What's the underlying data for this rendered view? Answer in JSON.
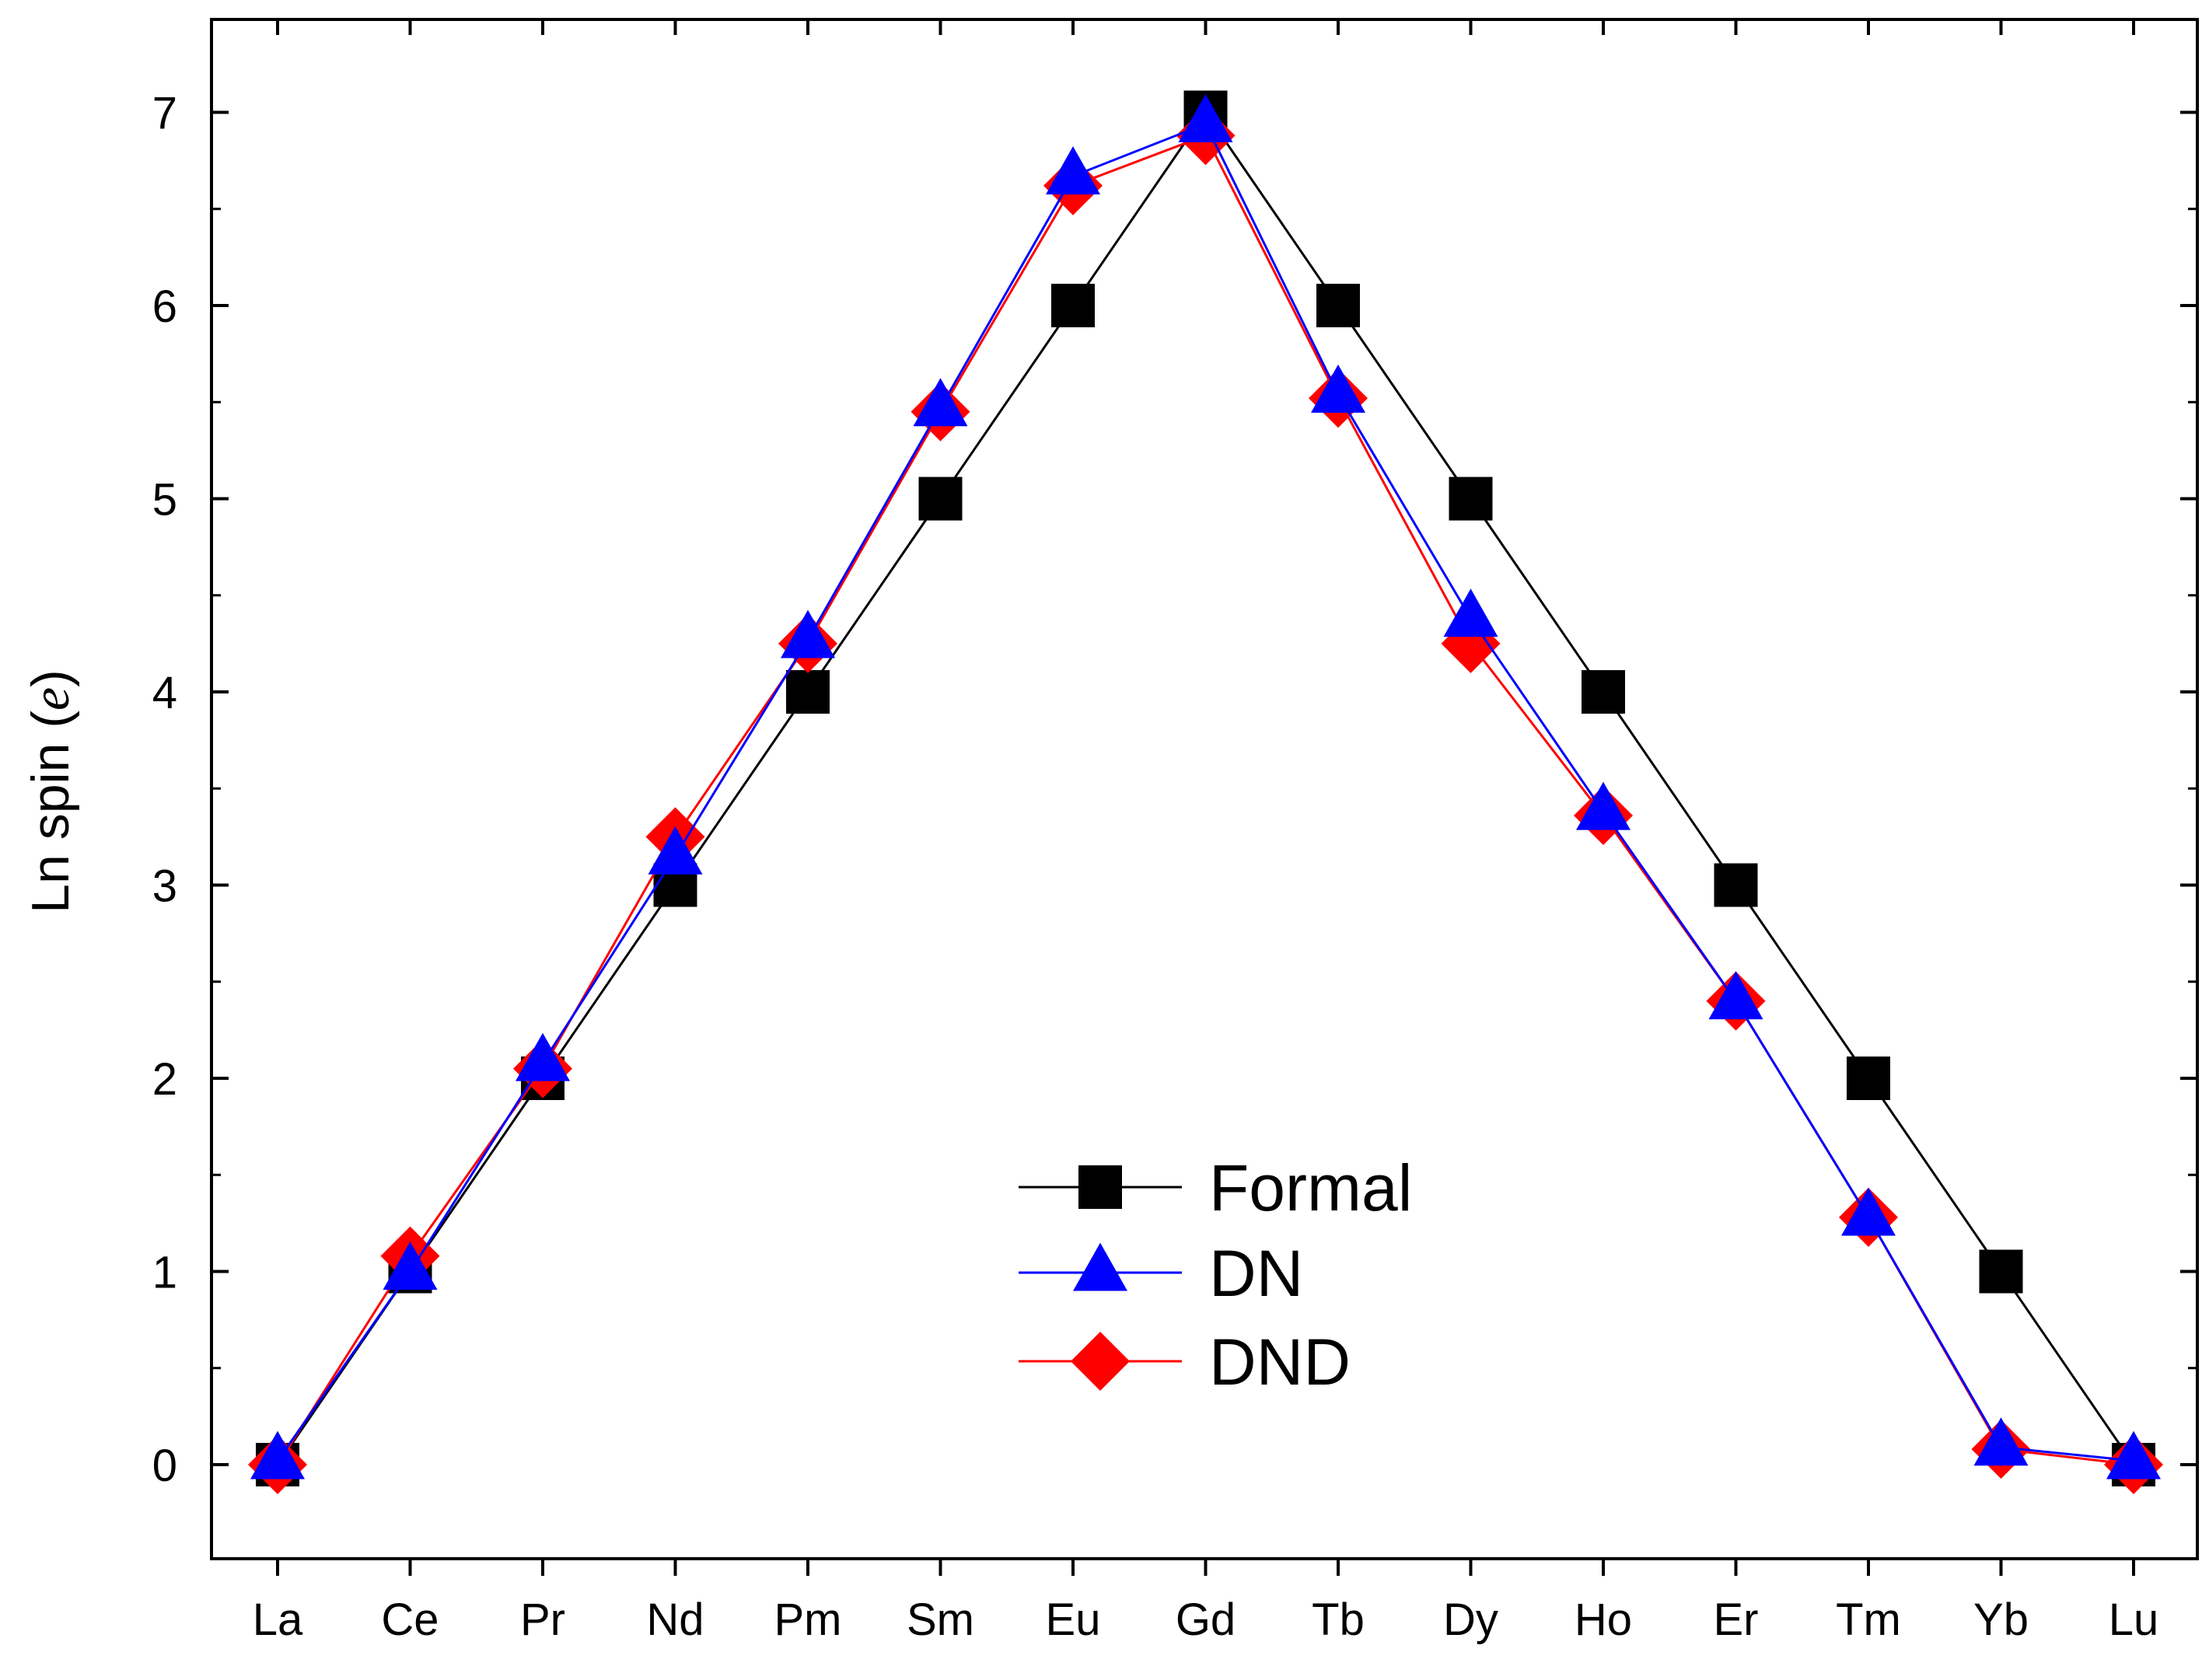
{
  "chart_data": {
    "type": "line",
    "categories": [
      "La",
      "Ce",
      "Pr",
      "Nd",
      "Pm",
      "Sm",
      "Eu",
      "Gd",
      "Tb",
      "Dy",
      "Ho",
      "Er",
      "Tm",
      "Yb",
      "Lu"
    ],
    "xlabel": "",
    "ylabel": "Ln spin (e)",
    "ylabel_main": "Ln spin (",
    "ylabel_unit": "e",
    "ylabel_close": ")",
    "ylim": [
      -0.5,
      7.4
    ],
    "yticks": [
      0,
      1,
      2,
      3,
      4,
      5,
      6,
      7
    ],
    "legend_position": "bottom-center",
    "grid": false,
    "series": [
      {
        "name": "Formal",
        "color": "#000000",
        "marker": "square",
        "values": [
          0,
          1,
          2,
          3,
          4,
          5,
          6,
          7,
          6,
          5,
          4,
          3,
          2,
          1,
          0
        ]
      },
      {
        "name": "DND",
        "color": "#ff0000",
        "marker": "diamond",
        "values": [
          0.0,
          1.08,
          2.05,
          3.25,
          4.25,
          5.45,
          6.62,
          6.88,
          5.52,
          4.25,
          3.36,
          2.4,
          1.28,
          0.08,
          0.0
        ]
      },
      {
        "name": "DN",
        "color": "#0000ff",
        "marker": "triangle",
        "values": [
          0.02,
          1.0,
          2.08,
          3.15,
          4.27,
          5.47,
          6.67,
          6.94,
          5.54,
          4.38,
          3.38,
          2.4,
          1.28,
          0.09,
          0.02
        ]
      }
    ],
    "legend_order": [
      0,
      2,
      1
    ]
  }
}
